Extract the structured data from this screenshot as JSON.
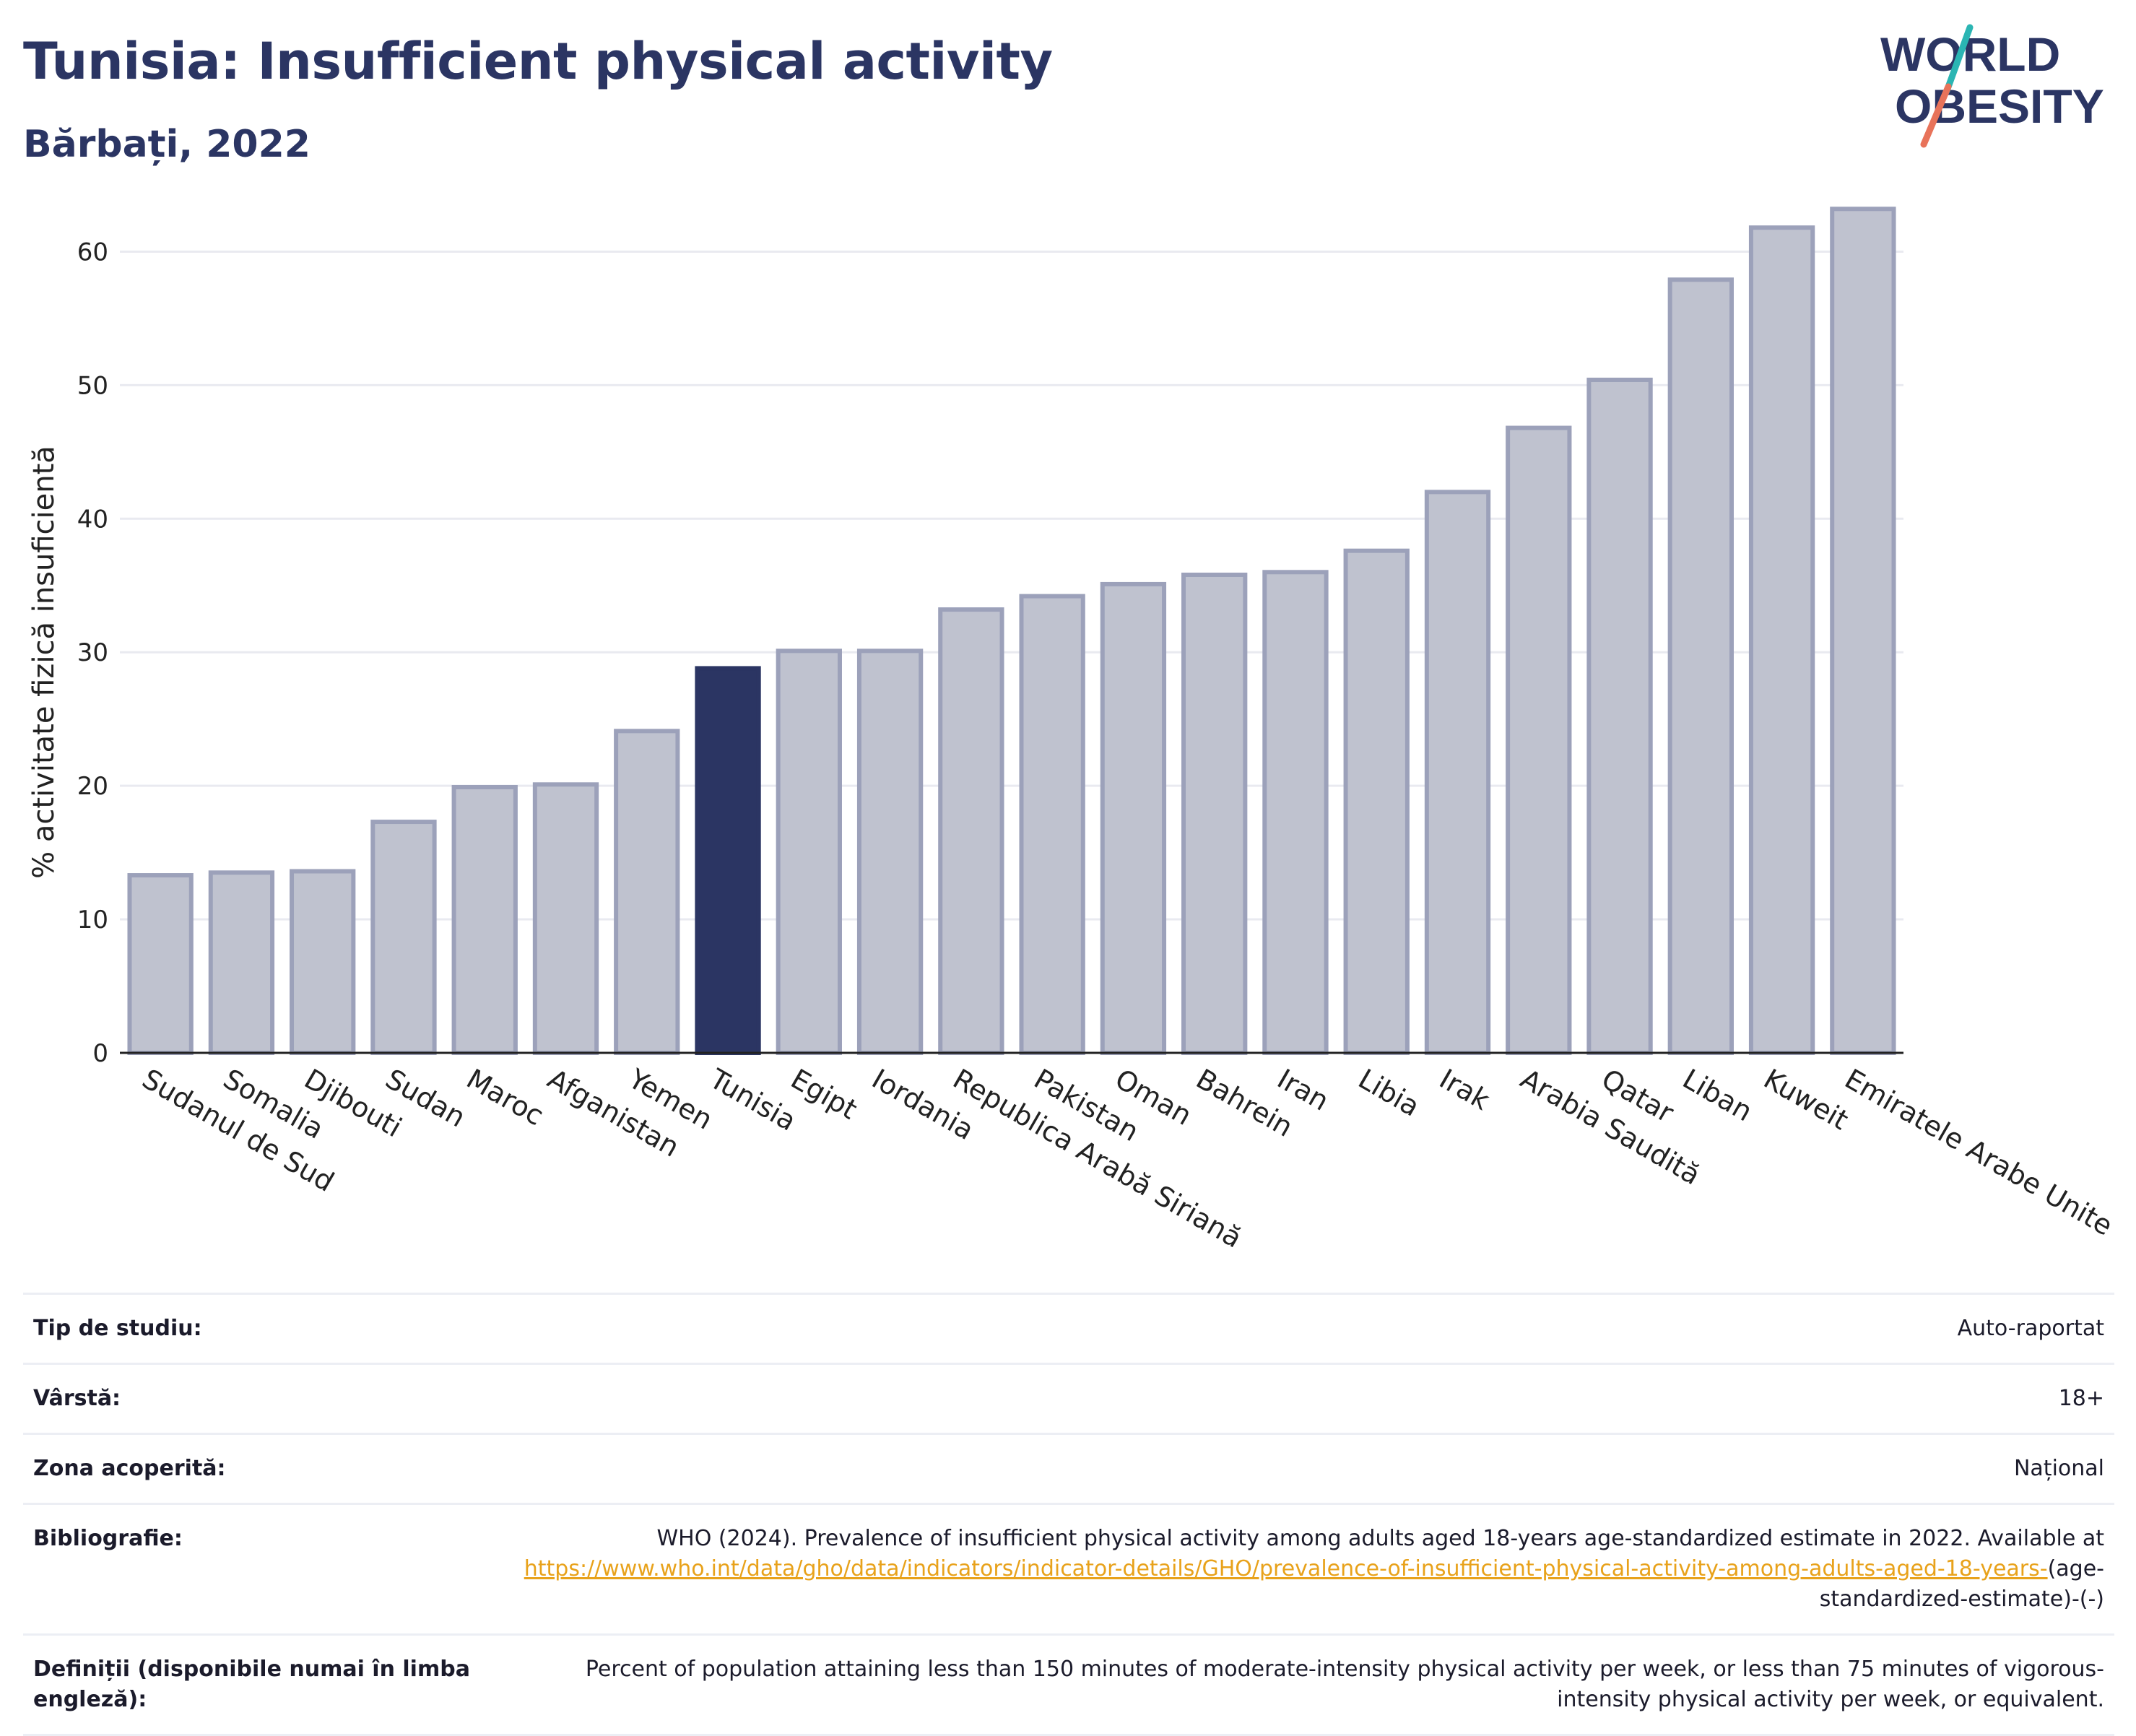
{
  "header": {
    "title": "Tunisia: Insufficient physical activity",
    "subtitle": "Bărbați, 2022"
  },
  "logo": {
    "line1": "WORLD",
    "line2": "OBESITY",
    "colors": {
      "text": "#2b3563",
      "slash_top": "#2bb5b3",
      "slash_bottom": "#e8735a"
    }
  },
  "chart_data": {
    "type": "bar",
    "ylabel": "% activitate fizică insuficientă",
    "ylim": [
      0,
      65
    ],
    "yticks": [
      0,
      10,
      20,
      30,
      40,
      50,
      60
    ],
    "grid": true,
    "highlight": "Tunisia",
    "colors": {
      "bar": "#bfc2cf",
      "bar_border": "#9ca1ba",
      "highlight": "#2b3563"
    },
    "categories": [
      "Sudanul de Sud",
      "Somalia",
      "Djibouti",
      "Sudan",
      "Maroc",
      "Afganistan",
      "Yemen",
      "Tunisia",
      "Egipt",
      "Iordania",
      "Republica Arabă Siriană",
      "Pakistan",
      "Oman",
      "Bahrein",
      "Iran",
      "Libia",
      "Irak",
      "Arabia Saudită",
      "Qatar",
      "Liban",
      "Kuweit",
      "Emiratele Arabe Unite"
    ],
    "values": [
      13.3,
      13.5,
      13.6,
      17.3,
      19.9,
      20.1,
      24.1,
      28.8,
      30.1,
      30.1,
      33.2,
      34.2,
      35.1,
      35.8,
      36.0,
      37.6,
      42.0,
      46.8,
      50.4,
      57.9,
      61.8,
      63.2
    ]
  },
  "meta": {
    "study_type": {
      "label": "Tip de studiu:",
      "value": "Auto-raportat"
    },
    "age": {
      "label": "Vârstă:",
      "value": "18+"
    },
    "coverage": {
      "label": "Zona acoperită:",
      "value": "Național"
    },
    "bibliography": {
      "label": "Bibliografie:",
      "text": "WHO (2024). Prevalence of insufficient physical activity among adults aged 18-years age-standardized estimate in 2022. Available at",
      "link": "https://www.who.int/data/gho/data/indicators/indicator-details/GHO/prevalence-of-insufficient-physical-activity-among-adults-aged-18-years-",
      "suffix": "(age-standardized-estimate)-(-)"
    },
    "definitions": {
      "label": "Definiții (disponibile numai în limba engleză):",
      "value": "Percent of population attaining less than 150 minutes of moderate-intensity physical activity per week, or less than 75 minutes of vigorous-intensity physical activity per week, or equivalent."
    }
  }
}
